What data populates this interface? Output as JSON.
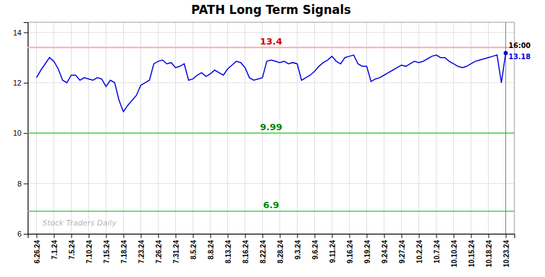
{
  "chart_data": {
    "type": "line",
    "title": "PATH Long Term Signals",
    "x": [
      0,
      0.25,
      0.5,
      0.75,
      1,
      1.25,
      1.5,
      1.75,
      2,
      2.25,
      2.5,
      2.75,
      3,
      3.25,
      3.5,
      3.75,
      4,
      4.25,
      4.5,
      4.75,
      5,
      5.25,
      5.5,
      5.75,
      6,
      6.25,
      6.5,
      6.75,
      7,
      7.25,
      7.5,
      7.75,
      8,
      8.25,
      8.5,
      8.75,
      9,
      9.25,
      9.5,
      9.75,
      10,
      10.25,
      10.5,
      10.75,
      11,
      11.25,
      11.5,
      11.75,
      12,
      12.25,
      12.5,
      12.75,
      13,
      13.25,
      13.5,
      13.75,
      14,
      14.25,
      14.5,
      14.75,
      15,
      15.25,
      15.5,
      15.75,
      16,
      16.25,
      16.5,
      16.75,
      17,
      17.25,
      17.5,
      17.75,
      18,
      18.25,
      18.5,
      18.75,
      19,
      19.25,
      19.5,
      19.75,
      20,
      20.25,
      20.5,
      20.75,
      21,
      21.25,
      21.5,
      21.75,
      22,
      22.25,
      22.5,
      22.75,
      23,
      23.25,
      23.5,
      23.75,
      24,
      24.25,
      24.5,
      24.75,
      25,
      25.25,
      25.5,
      25.75,
      26,
      26.25,
      26.5,
      26.75,
      27
    ],
    "series": [
      {
        "color": "#0000dd",
        "values": [
          12.2,
          12.5,
          12.75,
          13.0,
          12.85,
          12.55,
          12.1,
          12.0,
          12.3,
          12.3,
          12.1,
          12.2,
          12.15,
          12.1,
          12.2,
          12.15,
          11.85,
          12.1,
          12.0,
          11.3,
          10.85,
          11.1,
          11.3,
          11.5,
          11.9,
          12.0,
          12.1,
          12.75,
          12.85,
          12.9,
          12.75,
          12.8,
          12.6,
          12.65,
          12.75,
          12.1,
          12.15,
          12.3,
          12.4,
          12.25,
          12.35,
          12.5,
          12.4,
          12.3,
          12.55,
          12.7,
          12.85,
          12.8,
          12.6,
          12.2,
          12.1,
          12.15,
          12.2,
          12.85,
          12.9,
          12.85,
          12.8,
          12.85,
          12.75,
          12.8,
          12.75,
          12.1,
          12.2,
          12.3,
          12.45,
          12.65,
          12.8,
          12.9,
          13.05,
          12.85,
          12.75,
          13.0,
          13.05,
          13.1,
          12.75,
          12.65,
          12.65,
          12.05,
          12.15,
          12.2,
          12.3,
          12.4,
          12.5,
          12.6,
          12.7,
          12.65,
          12.75,
          12.85,
          12.8,
          12.85,
          12.95,
          13.05,
          13.1,
          13.0,
          13.0,
          12.85,
          12.75,
          12.65,
          12.6,
          12.65,
          12.75,
          12.85,
          12.9,
          12.95,
          13.0,
          13.05,
          13.1,
          12.0,
          13.18
        ]
      }
    ],
    "xlim": [
      -0.5,
      27.5
    ],
    "xticks": [
      {
        "value": 0,
        "label": "6.26.24"
      },
      {
        "value": 1,
        "label": "7.1.24"
      },
      {
        "value": 2,
        "label": "7.5.24"
      },
      {
        "value": 3,
        "label": "7.10.24"
      },
      {
        "value": 4,
        "label": "7.15.24"
      },
      {
        "value": 5,
        "label": "7.18.24"
      },
      {
        "value": 6,
        "label": "7.23.24"
      },
      {
        "value": 7,
        "label": "7.26.24"
      },
      {
        "value": 8,
        "label": "7.31.24"
      },
      {
        "value": 9,
        "label": "8.5.24"
      },
      {
        "value": 10,
        "label": "8.8.24"
      },
      {
        "value": 11,
        "label": "8.13.24"
      },
      {
        "value": 12,
        "label": "8.16.24"
      },
      {
        "value": 13,
        "label": "8.22.24"
      },
      {
        "value": 14,
        "label": "8.28.24"
      },
      {
        "value": 15,
        "label": "9.3.24"
      },
      {
        "value": 16,
        "label": "9.6.24"
      },
      {
        "value": 17,
        "label": "9.11.24"
      },
      {
        "value": 18,
        "label": "9.16.24"
      },
      {
        "value": 19,
        "label": "9.19.24"
      },
      {
        "value": 20,
        "label": "9.24.24"
      },
      {
        "value": 21,
        "label": "9.27.24"
      },
      {
        "value": 22,
        "label": "10.2.24"
      },
      {
        "value": 23,
        "label": "10.7.24"
      },
      {
        "value": 24,
        "label": "10.10.24"
      },
      {
        "value": 25,
        "label": "10.15.24"
      },
      {
        "value": 26,
        "label": "10.18.24"
      },
      {
        "value": 27,
        "label": "10.23.24"
      }
    ],
    "ylim": [
      6,
      14.4
    ],
    "yticks": [
      6,
      8,
      10,
      12,
      14
    ],
    "grid": true,
    "reference_lines": [
      {
        "y": 13.4,
        "label": "13.4",
        "color": "#ffaaaa",
        "label_color": "#cc0000"
      },
      {
        "y": 10.0,
        "label": "9.99",
        "color": "#44cc44",
        "label_color": "#008800"
      },
      {
        "y": 6.9,
        "label": "6.9",
        "color": "#44cc44",
        "label_color": "#008800"
      }
    ],
    "vertical_lines": [
      {
        "x": 27
      }
    ],
    "annotations": [
      {
        "text": "16:00",
        "x": 27,
        "y": 13.18,
        "color": "#000000"
      },
      {
        "text": "13.18",
        "x": 27,
        "y": 13.18,
        "color": "#0000dd"
      }
    ],
    "watermark": "Stock Traders Daily"
  }
}
